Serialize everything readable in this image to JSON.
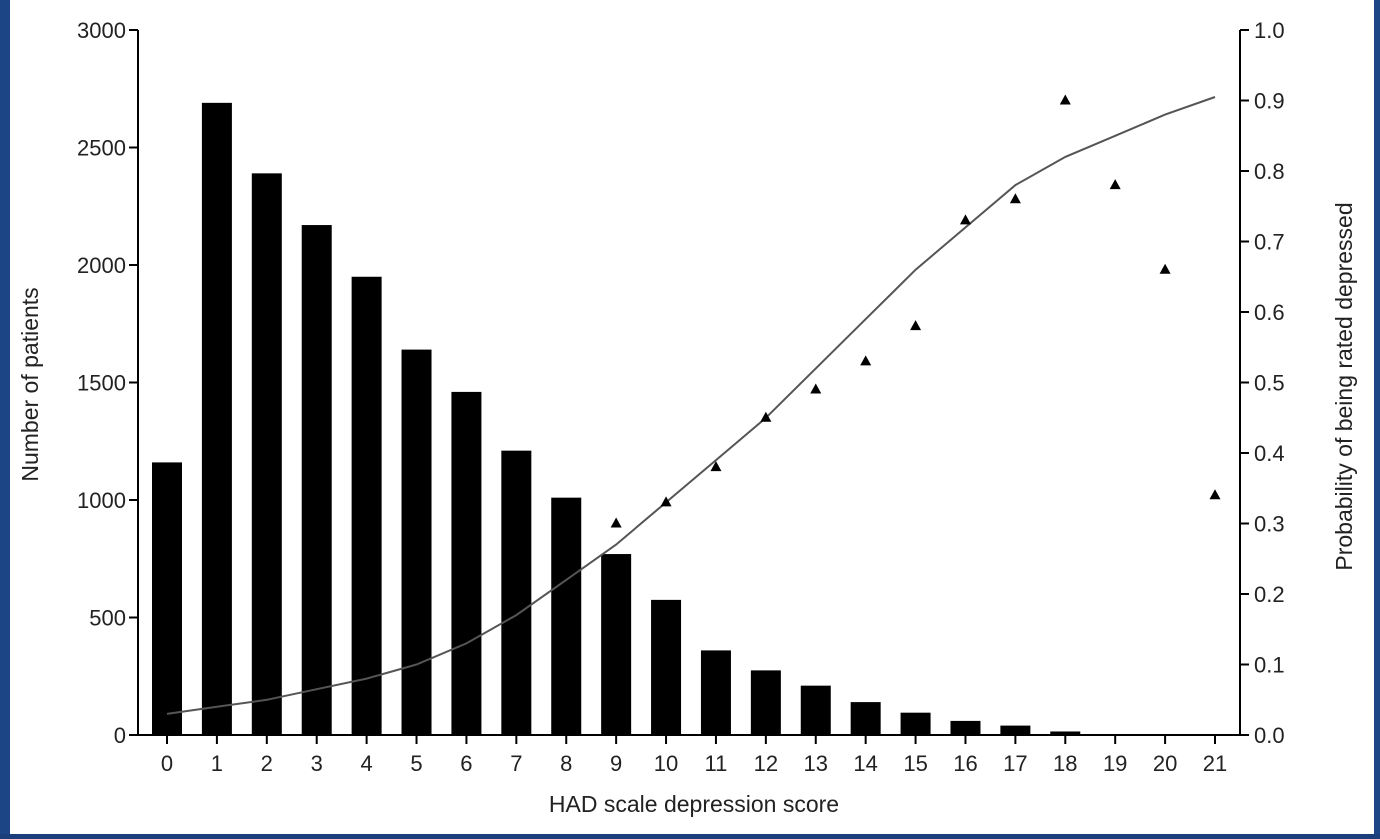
{
  "chart_data": {
    "type": "bar",
    "title": "",
    "xlabel": "HAD scale depression score",
    "ylabel": "Number of patients",
    "y2label": "Probability of being rated depressed",
    "categories": [
      "0",
      "1",
      "2",
      "3",
      "4",
      "5",
      "6",
      "7",
      "8",
      "9",
      "10",
      "11",
      "12",
      "13",
      "14",
      "15",
      "16",
      "17",
      "18",
      "19",
      "20",
      "21"
    ],
    "ylim": [
      0,
      3000
    ],
    "y_ticks": [
      "0",
      "500",
      "1000",
      "1500",
      "2000",
      "2500",
      "3000"
    ],
    "y2lim": [
      0,
      1.0
    ],
    "y2_ticks": [
      "0.0",
      "0.1",
      "0.2",
      "0.3",
      "0.4",
      "0.5",
      "0.6",
      "0.7",
      "0.8",
      "0.9",
      "1.0"
    ],
    "grid": false,
    "series": [
      {
        "type": "bar",
        "axis": "left",
        "color": "#000000",
        "values": [
          1160,
          2690,
          2390,
          2170,
          1950,
          1640,
          1460,
          1210,
          1010,
          770,
          575,
          360,
          275,
          210,
          140,
          95,
          60,
          40,
          15,
          0,
          0,
          0
        ]
      },
      {
        "type": "scatter",
        "axis": "right",
        "marker": "triangle",
        "color": "#000000",
        "x": [
          9,
          10,
          11,
          12,
          13,
          14,
          15,
          16,
          17,
          18,
          19,
          20,
          21
        ],
        "values": [
          0.3,
          0.33,
          0.38,
          0.45,
          0.49,
          0.53,
          0.58,
          0.73,
          0.76,
          0.9,
          0.78,
          0.66,
          0.34
        ]
      },
      {
        "type": "line",
        "axis": "right",
        "color": "#555555",
        "x": [
          0,
          1,
          2,
          3,
          4,
          5,
          6,
          7,
          8,
          9,
          10,
          11,
          12,
          13,
          14,
          15,
          16,
          17,
          18,
          19,
          20,
          21
        ],
        "values": [
          0.03,
          0.04,
          0.05,
          0.065,
          0.08,
          0.1,
          0.13,
          0.17,
          0.22,
          0.27,
          0.33,
          0.39,
          0.45,
          0.52,
          0.59,
          0.66,
          0.72,
          0.78,
          0.82,
          0.85,
          0.88,
          0.905
        ]
      }
    ]
  }
}
